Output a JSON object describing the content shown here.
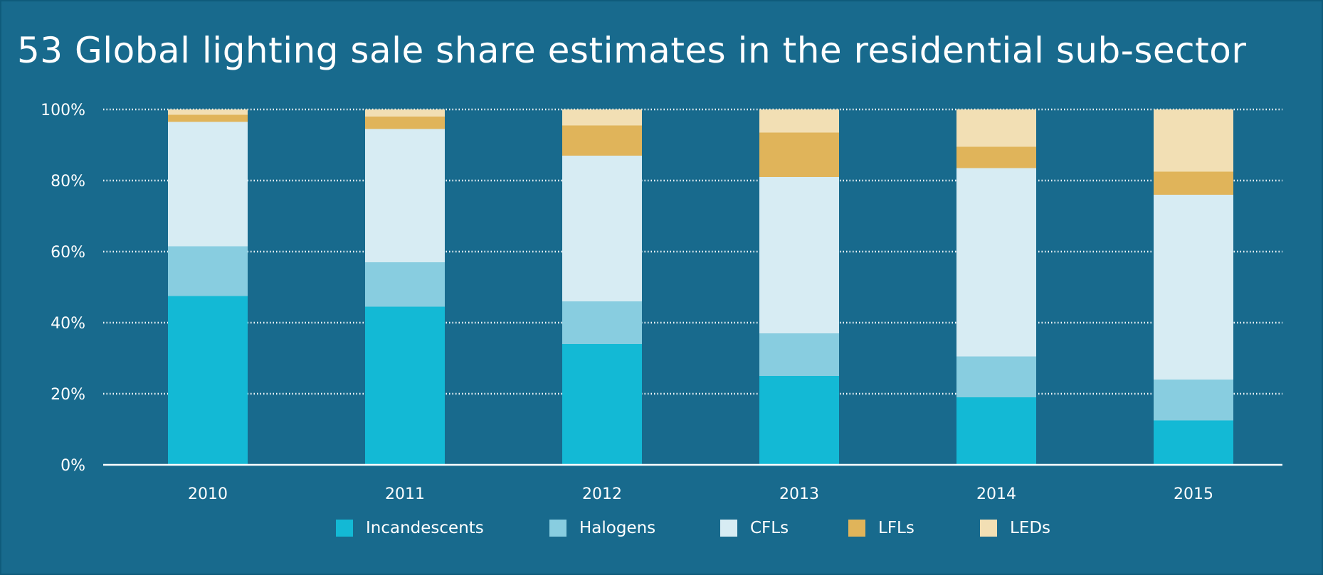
{
  "title": "53 Global lighting sale share estimates in the residential sub-sector",
  "colors": {
    "background": "#186a8d",
    "Incandescents": "#13b9d5",
    "Halogens": "#88cde0",
    "CFLs": "#d7ecf3",
    "LFLs": "#e0b45a",
    "LEDs": "#f2dfb4",
    "text": "#ffffff"
  },
  "chart_data": {
    "type": "bar",
    "stacked": true,
    "categories": [
      "2010",
      "2011",
      "2012",
      "2013",
      "2014",
      "2015"
    ],
    "series": [
      {
        "name": "Incandescents",
        "values": [
          47.5,
          44.5,
          34,
          25,
          19,
          12.5
        ]
      },
      {
        "name": "Halogens",
        "values": [
          14,
          12.5,
          12,
          12,
          11.5,
          11.5
        ]
      },
      {
        "name": "CFLs",
        "values": [
          35,
          37.5,
          41,
          44,
          53,
          52
        ]
      },
      {
        "name": "LFLs",
        "values": [
          2,
          3.5,
          8.5,
          12.5,
          6,
          6.5
        ]
      },
      {
        "name": "LEDs",
        "values": [
          1.5,
          2,
          4.5,
          6.5,
          10.5,
          17.5
        ]
      }
    ],
    "ylim": [
      0,
      100
    ],
    "yticks": [
      "0%",
      "20%",
      "40%",
      "60%",
      "80%",
      "100%"
    ],
    "grid": "dotted horizontal",
    "legend": "bottom"
  }
}
